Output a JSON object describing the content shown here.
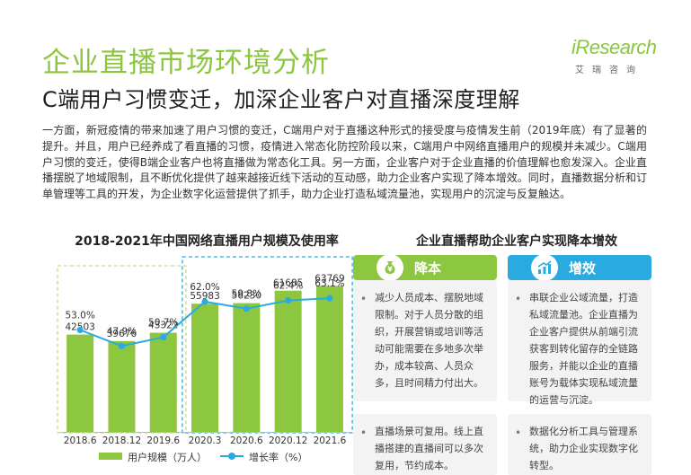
{
  "header": {
    "title": "企业直播市场环境分析",
    "subtitle": "C端用户习惯变迁，加深企业客户对直播深度理解"
  },
  "logo": {
    "word": "iResearch",
    "sub": "艾瑞咨询"
  },
  "intro": "一方面，新冠疫情的带来加速了用户习惯的变迁，C端用户对于直播这种形式的接受度与疫情发生前（2019年底）有了显著的提升。并且，用户已经养成了看直播的习惯，疫情进入常态化防控阶段以来，C端用户中网络直播用户的规模并未减少。C端用户习惯的变迁，使得B端企业客户也将直播做为常态化工具。另一方面，企业客户对于企业直播的价值理解也愈发深入。企业直播摆脱了地域限制，且不断优化提供了越来越接近线下活动的互动感，助力企业客户实现了降本增效。同时，直播数据分析和订单管理等工具的开发，为企业数字化运营提供了抓手，助力企业打造私域流量池，实现用户的沉淀与反复触达。",
  "chart_data": {
    "type": "bar+line",
    "title": "2018-2021年中国网络直播用户规模及使用率",
    "categories": [
      "2018.6",
      "2018.12",
      "2019.6",
      "2020.3",
      "2020.6",
      "2020.12",
      "2021.6"
    ],
    "series": [
      {
        "name": "用户规模（万人）",
        "type": "bar",
        "values": [
          42503,
          39676,
          43322,
          55983,
          56230,
          61685,
          63769
        ],
        "labels": [
          "42503",
          "39676",
          "43322",
          "55983",
          "56230",
          "61685",
          "63769"
        ],
        "color": "#8dc63f"
      },
      {
        "name": "增长率（%）",
        "type": "line",
        "values": [
          53.0,
          47.9,
          50.7,
          62.0,
          59.8,
          62.4,
          63.1
        ],
        "labels": [
          "53.0%",
          "47.9%",
          "50.7%",
          "62.0%",
          "59.8%",
          "62.4%",
          "63.1%"
        ],
        "color": "#29abe2"
      }
    ],
    "bar_ylim": [
      0,
      80000
    ],
    "line_ylim": [
      0,
      100
    ],
    "groups": [
      {
        "from": 0,
        "to": 2,
        "color": "#c8d98a",
        "style": "dashed"
      },
      {
        "from": 3,
        "to": 6,
        "color": "#29abe2",
        "style": "dashed"
      }
    ],
    "legend": {
      "bar_label": "用户规模（万人）",
      "line_label": "增长率（%）",
      "position": "bottom"
    }
  },
  "right": {
    "title": "企业直播帮助企业客户实现降本增效",
    "reduce": {
      "label": "降本",
      "icon": "money-bag-icon",
      "color": "#8dc63f",
      "items": [
        "减少人员成本、摆脱地域限制。对于人员分散的组织，开展营销或培训等活动可能需要在多地多次举办，成本较高、人员众多，且时间精力付出大。",
        "直播场景可复用。线上直播搭建的直播间可以多次复用，节约成本。"
      ]
    },
    "increase": {
      "label": "增效",
      "icon": "growth-chart-icon",
      "color": "#29abe2",
      "items": [
        "串联企业公域流量，打造私域流量池。企业直播为企业客户提供从前端引流获客到转化留存的全链路服务，并能以企业的直播账号为载体实现私域流量的运营与沉淀。",
        "数据化分析工具与管理系统，助力企业实现数字化转型。"
      ]
    }
  }
}
